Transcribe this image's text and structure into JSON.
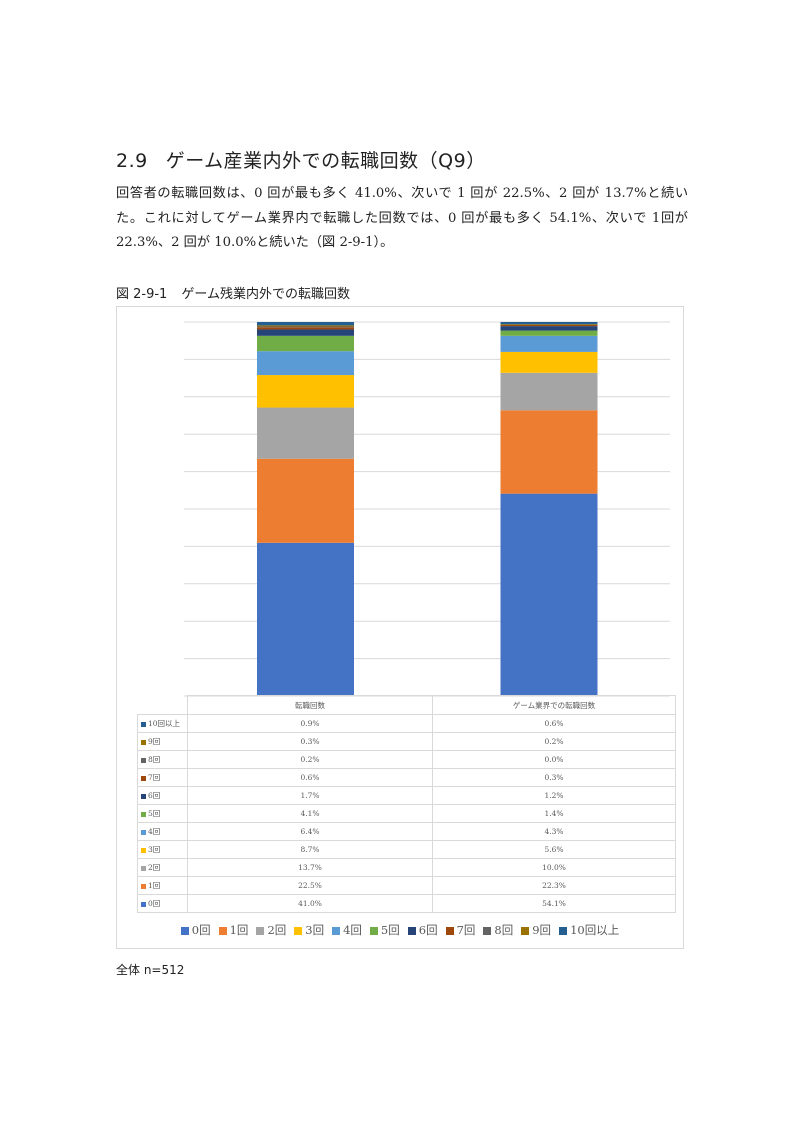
{
  "section": {
    "number": "2.9",
    "title": "ゲーム産業内外での転職回数（Q9）"
  },
  "paragraph": {
    "line1": "回答者の転職回数は、0 回が最も多く 41.0%、次いで 1 回が 22.5%、2 回が 13.7%と続",
    "line2": "いた。これに対してゲーム業界内で転職した回数では、0 回が最も多く 54.1%、次いで 1",
    "line3": "回が 22.3%、2 回が 10.0%と続いた（図 2-9-1）。"
  },
  "figure": {
    "number": "図 2-9-1",
    "title": "ゲーム残業内外での転職回数"
  },
  "footnote": "全体 n=512",
  "colors": [
    "#4472c4",
    "#ed7d31",
    "#a5a5a5",
    "#ffc000",
    "#5b9bd5",
    "#70ad47",
    "#264478",
    "#9e480e",
    "#636363",
    "#997300",
    "#255e91"
  ],
  "chart_data": {
    "type": "bar",
    "stacked": true,
    "percent_stacked": true,
    "grid": true,
    "categories": [
      "転職回数",
      "ゲーム業界での転職回数"
    ],
    "series": [
      {
        "name": "0回",
        "values": [
          41.0,
          54.1
        ],
        "labels": [
          "41.0%",
          "54.1%"
        ]
      },
      {
        "name": "1回",
        "values": [
          22.5,
          22.3
        ],
        "labels": [
          "22.5%",
          "22.3%"
        ]
      },
      {
        "name": "2回",
        "values": [
          13.7,
          10.0
        ],
        "labels": [
          "13.7%",
          "10.0%"
        ]
      },
      {
        "name": "3回",
        "values": [
          8.7,
          5.6
        ],
        "labels": [
          "8.7%",
          "5.6%"
        ]
      },
      {
        "name": "4回",
        "values": [
          6.4,
          4.3
        ],
        "labels": [
          "6.4%",
          "4.3%"
        ]
      },
      {
        "name": "5回",
        "values": [
          4.1,
          1.4
        ],
        "labels": [
          "4.1%",
          "1.4%"
        ]
      },
      {
        "name": "6回",
        "values": [
          1.7,
          1.2
        ],
        "labels": [
          "1.7%",
          "1.2%"
        ]
      },
      {
        "name": "7回",
        "values": [
          0.6,
          0.3
        ],
        "labels": [
          "0.6%",
          "0.3%"
        ]
      },
      {
        "name": "8回",
        "values": [
          0.2,
          0.0
        ],
        "labels": [
          "0.2%",
          "0.0%"
        ]
      },
      {
        "name": "9回",
        "values": [
          0.3,
          0.2
        ],
        "labels": [
          "0.3%",
          "0.2%"
        ]
      },
      {
        "name": "10回以上",
        "values": [
          0.9,
          0.6
        ],
        "labels": [
          "0.9%",
          "0.6%"
        ]
      }
    ],
    "legend_position": "bottom",
    "table_below": true
  }
}
